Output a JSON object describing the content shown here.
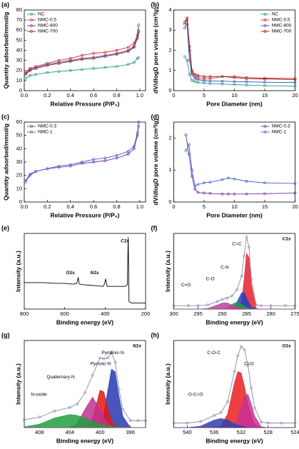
{
  "chart_data": [
    {
      "type": "line",
      "label": "(a)",
      "xlabel": "Relative Pressure (P/P₀)",
      "ylabel": "Quantity adsorbed/mmol/g",
      "legend": "upper left",
      "markers": true,
      "xlim": [
        0,
        1.05
      ],
      "xticks": [
        {
          "value": 0,
          "label": "0.0"
        },
        0.2,
        0.4,
        0.6,
        0.8,
        {
          "value": 1,
          "label": "1.0"
        }
      ],
      "ylim": [
        0,
        80
      ],
      "yticks": [
        0,
        10,
        20,
        30,
        40,
        50,
        60,
        70,
        80
      ],
      "x": [
        0.01,
        0.05,
        0.1,
        0.2,
        0.3,
        0.4,
        0.5,
        0.6,
        0.7,
        0.8,
        0.9,
        0.95,
        0.98,
        0.99
      ],
      "series": [
        {
          "name": "NC",
          "color": "#1f9a8a",
          "values": [
            12,
            15,
            16,
            18,
            19,
            20,
            21,
            22,
            23,
            24,
            26,
            28,
            32,
            33
          ]
        },
        {
          "name": "NMC-0.5",
          "color": "#e02020",
          "values": [
            18,
            22,
            24,
            27,
            30,
            32,
            35,
            37,
            38,
            40,
            43,
            47,
            55,
            60
          ]
        },
        {
          "name": "NMC-800",
          "color": "#2f4fbf",
          "values": [
            17,
            21,
            23,
            26,
            28,
            30,
            32,
            33,
            35,
            37,
            40,
            44,
            55,
            65
          ]
        },
        {
          "name": "NMC-700",
          "color": "#8b1a1a",
          "values": [
            16,
            20,
            22,
            25,
            27,
            29,
            31,
            32,
            34,
            36,
            39,
            43,
            52,
            58
          ]
        }
      ]
    },
    {
      "type": "line",
      "label": "(b)",
      "xlabel": "Pore Diameter (nm)",
      "ylabel": "dV/dlogD pore volume (cm³/g)",
      "legend": "upper right",
      "markers": true,
      "xlim": [
        0,
        20
      ],
      "xticks": [
        0,
        5,
        10,
        15,
        20
      ],
      "ylim": [
        0,
        4
      ],
      "yticks": [
        0,
        1,
        2,
        3,
        4
      ],
      "x": [
        1.8,
        2.2,
        2.6,
        3,
        3.5,
        4,
        5,
        6,
        8,
        10,
        12,
        15,
        20
      ],
      "series": [
        {
          "name": "NC",
          "color": "#1f9a8a",
          "values": [
            1.7,
            1.5,
            0.8,
            0.5,
            0.45,
            0.4,
            0.38,
            0.35,
            0.33,
            0.3,
            0.28,
            0.25,
            0.22
          ]
        },
        {
          "name": "NMC-0.5",
          "color": "#e02020",
          "values": [
            3.3,
            3.5,
            2,
            0.9,
            0.7,
            0.65,
            0.6,
            0.6,
            0.7,
            0.7,
            0.65,
            0.62,
            0.6
          ]
        },
        {
          "name": "NMC-800",
          "color": "#2f4fbf",
          "values": [
            3.1,
            3.3,
            1.5,
            0.8,
            0.6,
            0.55,
            0.5,
            0.48,
            0.47,
            0.45,
            0.44,
            0.42,
            0.4
          ]
        },
        {
          "name": "NMC-700",
          "color": "#8b1a1a",
          "values": [
            3.4,
            3.6,
            2.2,
            1,
            0.8,
            0.75,
            0.7,
            0.7,
            0.7,
            0.65,
            0.6,
            0.58,
            0.55
          ]
        }
      ]
    },
    {
      "type": "line",
      "label": "(c)",
      "xlabel": "Relative Pressure (P/P₀)",
      "ylabel": "Quantity adsorbed/mmol/g",
      "legend": "upper left",
      "markers": true,
      "xlim": [
        0,
        1.05
      ],
      "xticks": [
        {
          "value": 0,
          "label": "0.0"
        },
        0.2,
        0.4,
        0.6,
        0.8,
        {
          "value": 1,
          "label": "1.0"
        }
      ],
      "ylim": [
        0,
        60
      ],
      "yticks": [
        0,
        10,
        20,
        30,
        40,
        50,
        60
      ],
      "x": [
        0.01,
        0.05,
        0.1,
        0.2,
        0.3,
        0.4,
        0.5,
        0.6,
        0.7,
        0.8,
        0.9,
        0.95,
        0.98,
        0.99
      ],
      "series": [
        {
          "name": "NMC-0.3",
          "color": "#7030a0",
          "values": [
            15,
            20,
            23,
            25,
            26,
            27,
            29,
            30,
            31,
            33,
            36,
            40,
            50,
            57
          ]
        },
        {
          "name": "NMC-1",
          "color": "#4060d0",
          "values": [
            16,
            21,
            23,
            25,
            27,
            28,
            30,
            32,
            33,
            35,
            38,
            42,
            52,
            60
          ]
        }
      ]
    },
    {
      "type": "line",
      "label": "(d)",
      "xlabel": "Pore Diameter (nm)",
      "ylabel": "dV/dlogD pore volume (cm³/g)",
      "legend": "upper right",
      "markers": true,
      "xlim": [
        0,
        20
      ],
      "xticks": [
        0,
        5,
        10,
        15,
        20
      ],
      "ylim": [
        0,
        2.5
      ],
      "yticks": [
        0,
        1,
        2
      ],
      "x": [
        2,
        2.5,
        3,
        3.5,
        4,
        5,
        6,
        8,
        9,
        10,
        12,
        15,
        20
      ],
      "series": [
        {
          "name": "NMC-0.3",
          "color": "#7030a0",
          "values": [
            2.1,
            1.5,
            0.8,
            0.4,
            0.3,
            0.28,
            0.27,
            0.25,
            0.25,
            0.25,
            0.25,
            0.26,
            0.28
          ]
        },
        {
          "name": "NMC-1",
          "color": "#4060d0",
          "values": [
            1.6,
            1.8,
            1.0,
            0.5,
            0.55,
            0.6,
            0.62,
            0.7,
            0.75,
            0.72,
            0.65,
            0.6,
            0.58
          ]
        }
      ]
    },
    {
      "type": "line",
      "label": "(e)",
      "xlabel": "Binding energy (eV)",
      "ylabel": "Intensity (a.u.)",
      "xlim": [
        800,
        200
      ],
      "xticks": [
        800,
        600,
        400,
        200
      ],
      "ylim": [
        0,
        100
      ],
      "annotations": [
        "O1s",
        "N1s",
        "C1s"
      ],
      "x": [
        800,
        750,
        700,
        650,
        600,
        560,
        540,
        533,
        528,
        500,
        450,
        410,
        402,
        398,
        390,
        350,
        300,
        290,
        286,
        284,
        282,
        270,
        250,
        210,
        200
      ],
      "series": [
        {
          "color": "#000000",
          "values": [
            35,
            35,
            35,
            34,
            34,
            33,
            34,
            42,
            33,
            32,
            31,
            30,
            34,
            40,
            30,
            30,
            30,
            32,
            95,
            60,
            10,
            8,
            8,
            8,
            8
          ]
        }
      ]
    },
    {
      "type": "line",
      "label": "(f)",
      "title": "C1s",
      "xlabel": "Binding energy (eV)",
      "ylabel": "Intensity (a.u.)",
      "xlim": [
        300,
        275
      ],
      "xticks": [
        300,
        295,
        290,
        285,
        280,
        275
      ],
      "ylim": [
        0,
        110
      ],
      "annotations": [
        "C=C",
        "C-N",
        "C-O",
        "C=O"
      ],
      "x": [
        300,
        297,
        295,
        293,
        291,
        290,
        289,
        288,
        287,
        286,
        285.5,
        285,
        284.5,
        284,
        283,
        282,
        280,
        277,
        275
      ],
      "series": [
        {
          "color": "#e8202a",
          "fill": true,
          "values": [
            0,
            0,
            0,
            0,
            0,
            0,
            0,
            0,
            0,
            11,
            43,
            81,
            75,
            35,
            1,
            0,
            0,
            0,
            0
          ]
        },
        {
          "color": "#2040c0",
          "fill": true,
          "values": [
            0,
            0,
            0,
            0,
            0,
            0,
            0,
            1,
            10,
            24,
            24,
            17,
            9,
            3,
            0,
            0,
            0,
            0,
            0
          ]
        },
        {
          "color": "#20a040",
          "fill": true,
          "values": [
            0,
            0,
            0,
            0,
            0,
            0,
            2,
            7,
            10,
            7,
            5,
            2,
            1,
            0,
            0,
            0,
            0,
            0,
            0
          ]
        },
        {
          "color": "#c040a0",
          "fill": true,
          "values": [
            0,
            0,
            0,
            1,
            6,
            9,
            9,
            6,
            3,
            1,
            0,
            0,
            0,
            0,
            0,
            0,
            0,
            0,
            0
          ]
        },
        {
          "color": "#8a8aa8",
          "markers": true,
          "values": [
            5,
            5,
            5,
            6,
            11,
            14,
            16,
            19,
            28,
            48,
            77,
            105,
            90,
            43,
            6,
            5,
            5,
            5,
            5
          ]
        }
      ]
    },
    {
      "type": "line",
      "label": "(g)",
      "title": "N1s",
      "xlabel": "Binding energy (eV)",
      "ylabel": "Intensity (a.u.)",
      "xlim": [
        410,
        394
      ],
      "xticks": [
        408,
        404,
        400,
        396
      ],
      "ylim": [
        0,
        100
      ],
      "annotations": [
        "Pyridinic-N",
        "Pyrrolic-N",
        "Quaternary-N",
        "N-oxide"
      ],
      "x": [
        410,
        408,
        406,
        404,
        403,
        402,
        401,
        400,
        399.5,
        399,
        398.5,
        398,
        397.5,
        397,
        396,
        395,
        394
      ],
      "series": [
        {
          "color": "#2838b0",
          "fill": true,
          "values": [
            0,
            0,
            0,
            0,
            0,
            0,
            0,
            4,
            16,
            42,
            67,
            64,
            36,
            13,
            0,
            0,
            0
          ]
        },
        {
          "color": "#e01818",
          "fill": true,
          "values": [
            0,
            0,
            0,
            0,
            0,
            0,
            10,
            43,
            41,
            23,
            8,
            2,
            0,
            0,
            0,
            0,
            0
          ]
        },
        {
          "color": "#c03090",
          "fill": true,
          "values": [
            0,
            0,
            0,
            0,
            5,
            21,
            35,
            21,
            11,
            5,
            2,
            0,
            0,
            0,
            0,
            0,
            0
          ]
        },
        {
          "color": "#20a040",
          "fill": true,
          "values": [
            1,
            4,
            11,
            15,
            14,
            11,
            7,
            4,
            3,
            2,
            1,
            1,
            0,
            0,
            0,
            0,
            0
          ]
        },
        {
          "color": "#8a8aa8",
          "markers": true,
          "values": [
            9,
            12,
            19,
            23,
            27,
            40,
            60,
            80,
            79,
            80,
            86,
            75,
            44,
            21,
            8,
            8,
            8
          ]
        }
      ]
    },
    {
      "type": "line",
      "label": "(h)",
      "title": "O1s",
      "xlabel": "Binding energy (eV)",
      "ylabel": "Intensity (a.u.)",
      "xlim": [
        542,
        524
      ],
      "xticks": [
        540,
        536,
        532,
        528,
        524
      ],
      "ylim": [
        0,
        115
      ],
      "annotations": [
        "C-O-C",
        "C=O",
        "O-C=O"
      ],
      "x": [
        542,
        540,
        538,
        536,
        535,
        534,
        533,
        532.5,
        532,
        531.5,
        531,
        530.5,
        530,
        529,
        528,
        526,
        524
      ],
      "series": [
        {
          "color": "#e82020",
          "fill": true,
          "values": [
            0,
            0,
            0,
            0,
            2,
            18,
            59,
            74,
            72,
            54,
            32,
            15,
            5,
            0,
            0,
            0,
            0
          ]
        },
        {
          "color": "#c83098",
          "fill": true,
          "values": [
            0,
            0,
            0,
            0,
            0,
            0,
            4,
            12,
            27,
            42,
            44,
            31,
            15,
            1,
            0,
            0,
            0
          ]
        },
        {
          "color": "#3040b0",
          "fill": true,
          "values": [
            0,
            0,
            2,
            10,
            12,
            10,
            5,
            3,
            2,
            1,
            0,
            0,
            0,
            0,
            0,
            0,
            0
          ]
        },
        {
          "color": "#8a8aa8",
          "markers": true,
          "values": [
            6,
            6,
            8,
            16,
            20,
            34,
            74,
            95,
            107,
            103,
            82,
            52,
            26,
            7,
            6,
            6,
            6
          ]
        }
      ]
    }
  ]
}
